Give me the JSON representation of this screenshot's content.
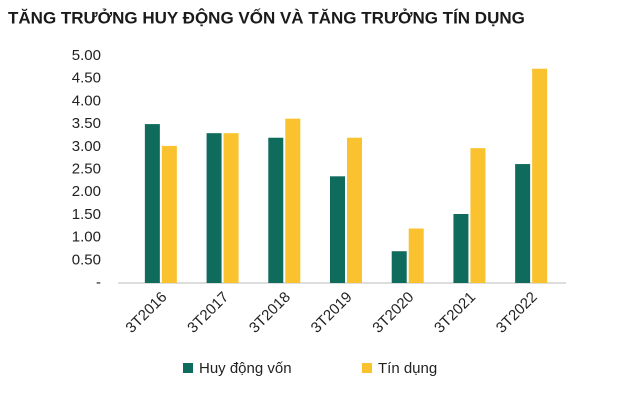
{
  "chart_data": {
    "type": "bar",
    "title": "TĂNG TRƯỞNG HUY ĐỘNG VỐN VÀ TĂNG TRƯỞNG TÍN DỤNG",
    "categories": [
      "3T2016",
      "3T2017",
      "3T2018",
      "3T2019",
      "3T2020",
      "3T2021",
      "3T2022"
    ],
    "series": [
      {
        "name": "Huy động vốn",
        "color": "#0f6b5c",
        "values": [
          3.5,
          3.3,
          3.2,
          2.35,
          0.7,
          1.52,
          2.62
        ]
      },
      {
        "name": "Tín dụng",
        "color": "#f9c22e",
        "values": [
          3.02,
          3.3,
          3.62,
          3.2,
          1.2,
          2.97,
          4.72
        ]
      }
    ],
    "ylim": [
      0,
      5
    ],
    "yticks": [
      {
        "value": 0,
        "label": "-"
      },
      {
        "value": 0.5,
        "label": "0.50"
      },
      {
        "value": 1,
        "label": "1.00"
      },
      {
        "value": 1.5,
        "label": "1.50"
      },
      {
        "value": 2,
        "label": "2.00"
      },
      {
        "value": 2.5,
        "label": "2.50"
      },
      {
        "value": 3,
        "label": "3.00"
      },
      {
        "value": 3.5,
        "label": "3.50"
      },
      {
        "value": 4,
        "label": "4.00"
      },
      {
        "value": 4.5,
        "label": "4.50"
      },
      {
        "value": 5,
        "label": "5.00"
      }
    ],
    "grid": false,
    "legend": "bottom"
  }
}
